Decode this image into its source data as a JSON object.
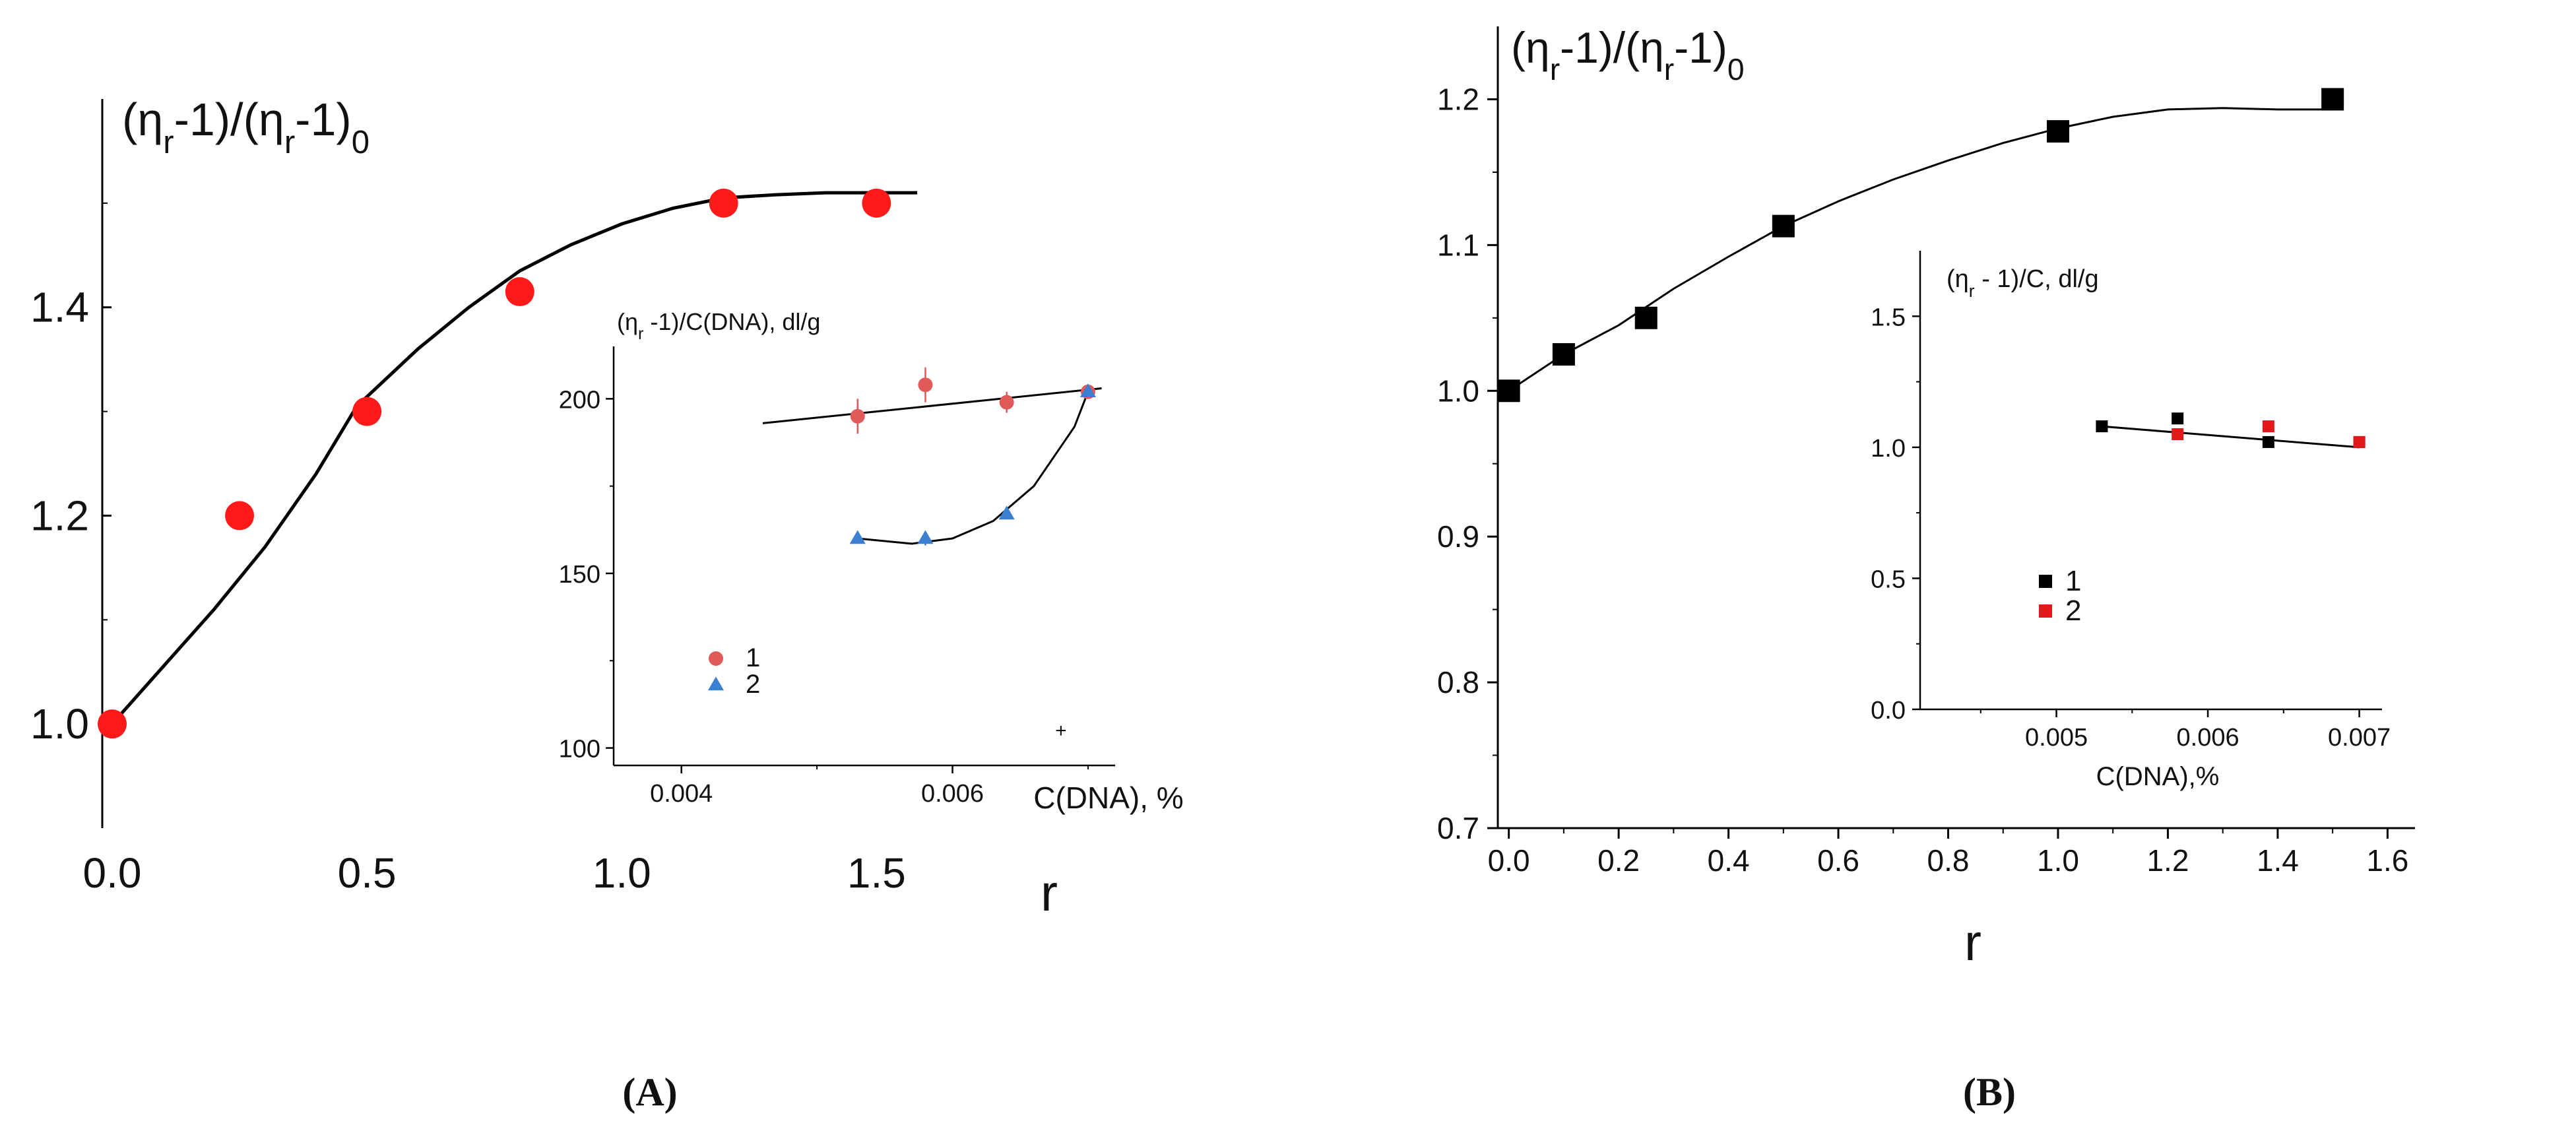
{
  "chart_data": [
    {
      "id": "A-main",
      "panel": "(A)",
      "type": "scatter",
      "title": "",
      "ylabel": "(ηr-1)/(ηr-1)0",
      "xlabel": "r",
      "xlim": [
        0,
        1.8
      ],
      "ylim": [
        0.9,
        1.6
      ],
      "xticks": [
        "0.0",
        "0.5",
        "1.0",
        "1.5"
      ],
      "yticks": [
        "1.0",
        "1.2",
        "1.4"
      ],
      "series": [
        {
          "name": "data",
          "color": "#ff1a1a",
          "marker": "circle",
          "x": [
            0,
            0.25,
            0.5,
            0.8,
            1.2,
            1.5
          ],
          "y": [
            1.0,
            1.2,
            1.3,
            1.415,
            1.5,
            1.5
          ]
        }
      ],
      "fit": {
        "color": "#000000",
        "x": [
          0,
          0.1,
          0.2,
          0.3,
          0.4,
          0.48,
          0.6,
          0.7,
          0.8,
          0.9,
          1.0,
          1.1,
          1.2,
          1.3,
          1.4,
          1.5,
          1.58
        ],
        "y": [
          1.0,
          1.055,
          1.11,
          1.17,
          1.24,
          1.305,
          1.36,
          1.4,
          1.435,
          1.46,
          1.48,
          1.495,
          1.505,
          1.508,
          1.51,
          1.51,
          1.51
        ]
      },
      "inset": {
        "type": "scatter",
        "ylabel": "(ηr -1)/C(DNA), dl/g",
        "xlabel": "C(DNA), %",
        "xlim": [
          0.0035,
          0.0072
        ],
        "ylim": [
          95,
          215
        ],
        "xticks": [
          "0.004",
          "0.006"
        ],
        "yticks": [
          "100",
          "150",
          "200"
        ],
        "series": [
          {
            "name": "1",
            "color": "#e05a5a",
            "marker": "circle",
            "x": [
              0.0053,
              0.0058,
              0.0064,
              0.007
            ],
            "y": [
              195,
              204,
              199,
              202
            ],
            "err": [
              5,
              5,
              3,
              1
            ]
          },
          {
            "name": "2",
            "color": "#3b7fd0",
            "marker": "triangle",
            "x": [
              0.0053,
              0.0058,
              0.0064,
              0.007
            ],
            "y": [
              160,
              160,
              167,
              202
            ],
            "err": [
              0,
              2,
              0,
              0
            ]
          }
        ],
        "fits": [
          {
            "color": "#000000",
            "x": [
              0.0046,
              0.0071
            ],
            "y": [
              193,
              203
            ]
          },
          {
            "color": "#000000",
            "x": [
              0.0053,
              0.0057,
              0.006,
              0.0063,
              0.0066,
              0.0069,
              0.007
            ],
            "y": [
              160,
              158.5,
              160,
              165,
              175,
              192,
              202
            ]
          }
        ],
        "legend": [
          "1",
          "2"
        ],
        "stray_mark": "+"
      }
    },
    {
      "id": "B-main",
      "panel": "(B)",
      "type": "scatter",
      "title": "",
      "ylabel": "(ηr-1)/(ηr-1)0",
      "xlabel": "r",
      "xlim": [
        -0.02,
        1.65
      ],
      "ylim": [
        0.7,
        1.25
      ],
      "xticks": [
        "0.0",
        "0.2",
        "0.4",
        "0.6",
        "0.8",
        "1.0",
        "1.2",
        "1.4",
        "1.6"
      ],
      "yticks": [
        "0.7",
        "0.8",
        "0.9",
        "1.0",
        "1.1",
        "1.2"
      ],
      "series": [
        {
          "name": "data",
          "color": "#000000",
          "marker": "square",
          "x": [
            0,
            0.1,
            0.25,
            0.5,
            1.0,
            1.5
          ],
          "y": [
            1.0,
            1.025,
            1.05,
            1.113,
            1.178,
            1.2
          ]
        }
      ],
      "fit": {
        "color": "#000000",
        "x": [
          0,
          0.1,
          0.2,
          0.3,
          0.4,
          0.5,
          0.6,
          0.7,
          0.8,
          0.9,
          1.0,
          1.1,
          1.2,
          1.3,
          1.4,
          1.5
        ],
        "y": [
          1.0,
          1.025,
          1.045,
          1.07,
          1.092,
          1.113,
          1.13,
          1.145,
          1.158,
          1.17,
          1.18,
          1.188,
          1.193,
          1.194,
          1.193,
          1.193
        ]
      },
      "inset": {
        "type": "scatter",
        "ylabel": "(ηr - 1)/C, dl/g",
        "xlabel": "C(DNA),%",
        "xlim": [
          0.0041,
          0.00715
        ],
        "ylim": [
          0,
          1.75
        ],
        "xticks": [
          "0.005",
          "0.006",
          "0.007"
        ],
        "yticks": [
          "0.0",
          "0.5",
          "1.0",
          "1.5"
        ],
        "series": [
          {
            "name": "1",
            "color": "#000000",
            "marker": "square",
            "x": [
              0.0053,
              0.0058,
              0.0064,
              0.007
            ],
            "y": [
              1.08,
              1.11,
              1.02,
              1.02
            ]
          },
          {
            "name": "2",
            "color": "#e01a1a",
            "marker": "square",
            "x": [
              0.0058,
              0.0064,
              0.007
            ],
            "y": [
              1.05,
              1.08,
              1.02
            ]
          }
        ],
        "fits": [
          {
            "color": "#000000",
            "x": [
              0.0053,
              0.007
            ],
            "y": [
              1.08,
              1.0
            ]
          }
        ],
        "legend": [
          "1",
          "2"
        ]
      }
    }
  ]
}
